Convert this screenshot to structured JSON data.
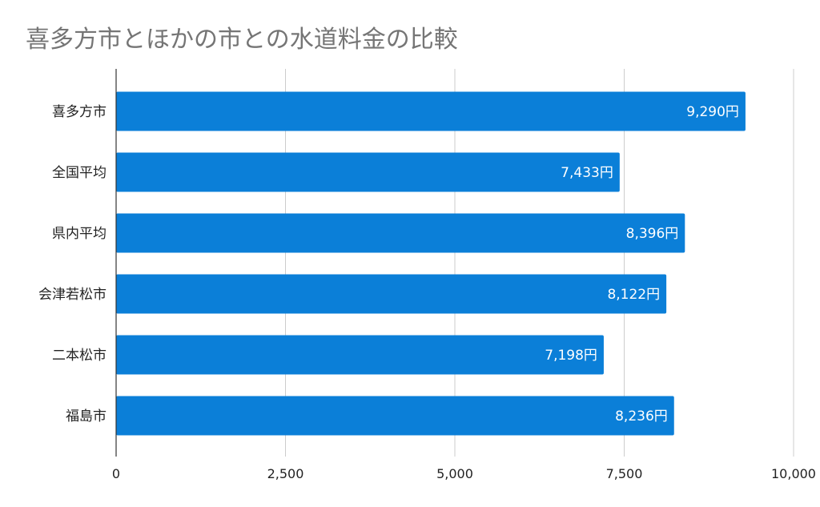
{
  "chart_data": {
    "type": "bar",
    "orientation": "horizontal",
    "title": "喜多方市とほかの市との水道料金の比較",
    "categories": [
      "喜多方市",
      "全国平均",
      "県内平均",
      "会津若松市",
      "二本松市",
      "福島市"
    ],
    "values": [
      9290,
      7433,
      8396,
      8122,
      7198,
      8236
    ],
    "data_labels": [
      "9,290円",
      "7,433円",
      "8,396円",
      "8,122円",
      "7,198円",
      "8,236円"
    ],
    "xlim": [
      0,
      10000
    ],
    "x_ticks": [
      0,
      2500,
      5000,
      7500,
      10000
    ],
    "x_tick_labels": [
      "0",
      "2,500",
      "5,000",
      "7,500",
      "10,000"
    ],
    "grid": true,
    "legend": "none",
    "bar_color": "#0b7fd8"
  }
}
